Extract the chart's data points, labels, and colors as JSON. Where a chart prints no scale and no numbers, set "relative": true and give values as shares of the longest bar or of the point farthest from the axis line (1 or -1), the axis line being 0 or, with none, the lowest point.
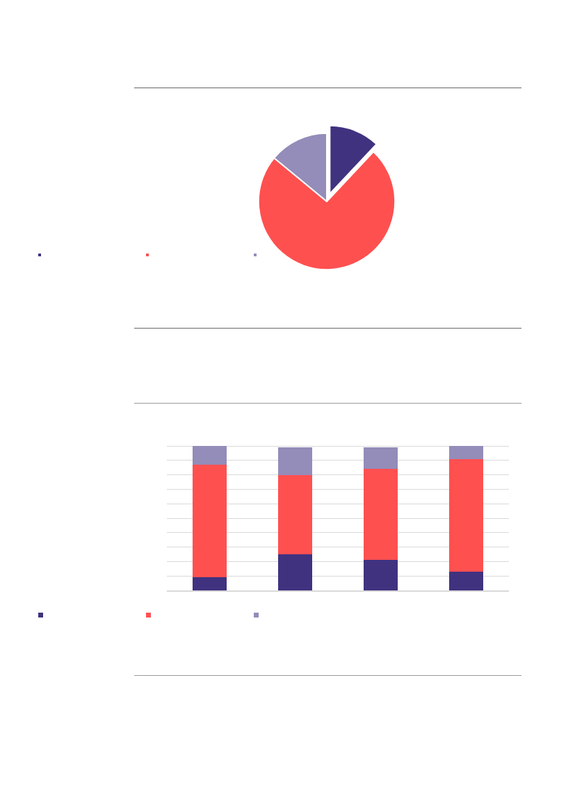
{
  "chart_data": [
    {
      "type": "pie",
      "categories": [
        null,
        null,
        null
      ],
      "values": [
        12,
        74,
        14
      ],
      "colors": [
        "#413280",
        "#ff5050",
        "#948cb9"
      ]
    },
    {
      "type": "bar",
      "stacked": true,
      "relative": true,
      "grid": "y",
      "categories": [
        null,
        null,
        null,
        null
      ],
      "series": [
        {
          "color": "#413280",
          "values": [
            0.09,
            0.25,
            0.21,
            0.13
          ]
        },
        {
          "color": "#ff5050",
          "values": [
            0.78,
            0.55,
            0.63,
            0.78
          ]
        },
        {
          "color": "#948cb9",
          "values": [
            0.13,
            0.19,
            0.15,
            0.09
          ]
        }
      ]
    }
  ]
}
